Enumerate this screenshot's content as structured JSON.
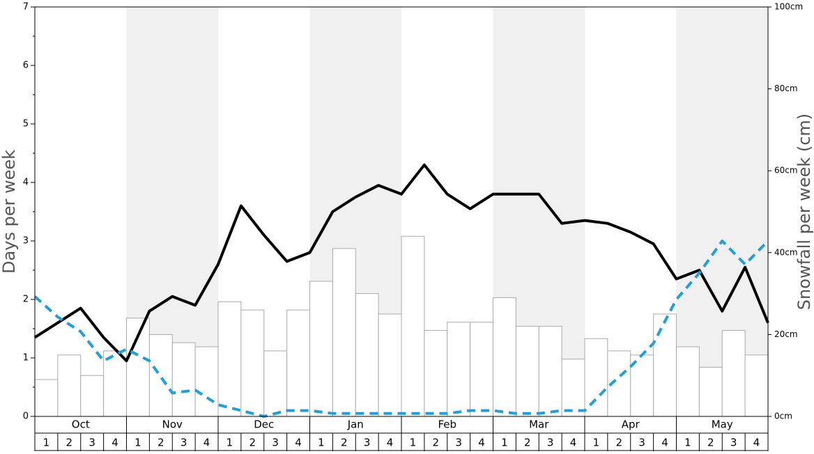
{
  "chart_data": {
    "type": "bar_line",
    "ylabel": "Days per week",
    "y2label": "Snowfall per week (cm)",
    "months": [
      "Oct",
      "Nov",
      "Dec",
      "Jan",
      "Feb",
      "Mar",
      "Apr",
      "May"
    ],
    "weeks": [
      "1",
      "2",
      "3",
      "4"
    ],
    "ylim": [
      0,
      7
    ],
    "yticks": [
      0,
      1,
      2,
      3,
      4,
      5,
      6,
      7
    ],
    "y2lim": [
      0,
      100
    ],
    "y2ticks": [
      {
        "value": 0,
        "label": "0cm"
      },
      {
        "value": 20,
        "label": "20cm"
      },
      {
        "value": 40,
        "label": "40cm"
      },
      {
        "value": 60,
        "label": "60cm"
      },
      {
        "value": 80,
        "label": "80cm"
      },
      {
        "value": 100,
        "label": "100cm"
      }
    ],
    "bars": {
      "axis": "y2",
      "color": "#ffffff",
      "edge": "#aaaaaa",
      "values": [
        9,
        15,
        10,
        16,
        24,
        20,
        18,
        17,
        28,
        26,
        16,
        26,
        33,
        41,
        30,
        25,
        44,
        21,
        23,
        23,
        29,
        22,
        22,
        14,
        19,
        16,
        15,
        25,
        17,
        12,
        21,
        15
      ]
    },
    "series": [
      {
        "color": "#000000",
        "dash": false,
        "values": [
          1.35,
          1.6,
          1.85,
          1.35,
          0.95,
          1.8,
          2.05,
          1.9,
          2.6,
          3.6,
          3.1,
          2.65,
          2.8,
          3.5,
          3.75,
          3.95,
          3.8,
          4.3,
          3.8,
          3.55,
          3.8,
          3.8,
          3.8,
          3.3,
          3.35,
          3.3,
          3.15,
          2.95,
          2.35,
          2.5,
          1.8,
          2.55,
          1.6
        ]
      },
      {
        "color": "#1ea0e0",
        "dash": true,
        "values": [
          2.05,
          1.7,
          1.45,
          0.95,
          1.15,
          0.95,
          0.4,
          0.45,
          0.2,
          0.1,
          0,
          0.1,
          0.1,
          0.05,
          0.05,
          0.05,
          0.05,
          0.05,
          0.05,
          0.1,
          0.1,
          0.05,
          0.05,
          0.1,
          0.1,
          0.5,
          0.85,
          1.25,
          2,
          2.45,
          3,
          2.6,
          3
        ]
      }
    ]
  }
}
